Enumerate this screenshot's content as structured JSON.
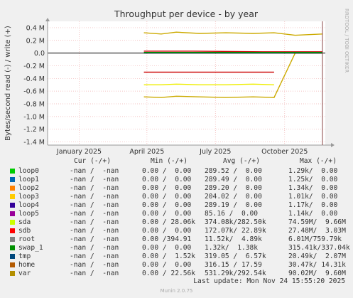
{
  "chart_data": {
    "type": "line",
    "title": "Throughput per device - by year",
    "ylabel": "Bytes/second read (-) / write (+)",
    "side_label": "RRDTOOL / TOBI OETIKER",
    "ylim": [
      -1.45,
      0.5
    ],
    "y_ticks": [
      {
        "value": 0.4,
        "label": "0.4 M"
      },
      {
        "value": 0.2,
        "label": "0.2 M"
      },
      {
        "value": 0.0,
        "label": "0.0"
      },
      {
        "value": -0.2,
        "label": "-0.2 M"
      },
      {
        "value": -0.4,
        "label": "-0.4 M"
      },
      {
        "value": -0.6,
        "label": "-0.6 M"
      },
      {
        "value": -0.8,
        "label": "-0.8 M"
      },
      {
        "value": -1.0,
        "label": "-1.0 M"
      },
      {
        "value": -1.2,
        "label": "-1.2 M"
      },
      {
        "value": -1.4,
        "label": "-1.4 M"
      }
    ],
    "x_range": [
      "2024-11-20",
      "2025-11-24"
    ],
    "x_ticks": [
      {
        "date": "2025-01-01",
        "label": "January 2025"
      },
      {
        "date": "2025-04-01",
        "label": "April 2025"
      },
      {
        "date": "2025-07-01",
        "label": "July 2025"
      },
      {
        "date": "2025-10-01",
        "label": "October 2025"
      }
    ],
    "grid": true,
    "series": [
      {
        "name": "var",
        "color": "#ccaa00",
        "x": [
          "2025-03-28",
          "2025-04-20",
          "2025-05-10",
          "2025-06-10",
          "2025-07-15",
          "2025-08-20",
          "2025-09-17",
          "2025-10-15",
          "2025-11-20"
        ],
        "y": [
          -0.69,
          -0.7,
          -0.68,
          -0.69,
          -0.7,
          -0.69,
          -0.7,
          0.0,
          0.0
        ]
      },
      {
        "name": "var",
        "color": "#ccaa00",
        "x": [
          "2025-03-28",
          "2025-04-20",
          "2025-05-10",
          "2025-06-10",
          "2025-07-15",
          "2025-08-20",
          "2025-09-17",
          "2025-10-15",
          "2025-11-20"
        ],
        "y": [
          0.32,
          0.3,
          0.33,
          0.31,
          0.32,
          0.31,
          0.32,
          0.28,
          0.3
        ]
      },
      {
        "name": "sda",
        "color": "#eeee00",
        "x": [
          "2025-03-28",
          "2025-04-20",
          "2025-05-10",
          "2025-06-10",
          "2025-07-15",
          "2025-08-20",
          "2025-09-17"
        ],
        "y": [
          -0.5,
          -0.5,
          -0.49,
          -0.5,
          -0.5,
          -0.49,
          -0.5
        ]
      },
      {
        "name": "sdb",
        "color": "#cc0000",
        "x": [
          "2025-03-28",
          "2025-04-20",
          "2025-05-10",
          "2025-06-10",
          "2025-07-15",
          "2025-08-20",
          "2025-09-17"
        ],
        "y": [
          -0.3,
          -0.3,
          -0.3,
          -0.3,
          -0.3,
          -0.3,
          -0.3
        ]
      },
      {
        "name": "sdb",
        "color": "#cc0000",
        "x": [
          "2025-03-28",
          "2025-06-01",
          "2025-09-01",
          "2025-11-20"
        ],
        "y": [
          0.03,
          0.03,
          0.02,
          0.02
        ]
      },
      {
        "name": "root",
        "color": "#00cc00",
        "x": [
          "2025-03-28",
          "2025-11-20"
        ],
        "y": [
          0.01,
          0.01
        ]
      },
      {
        "name": "tmp",
        "color": "#006666",
        "x": [
          "2025-03-28",
          "2025-11-20"
        ],
        "y": [
          0.0,
          0.0
        ]
      }
    ]
  },
  "legend": {
    "headers": {
      "cur": "Cur (-/+)",
      "min": "Min (-/+)",
      "avg": "Avg (-/+)",
      "max": "Max (-/+)"
    },
    "rows": [
      {
        "name": "loop0",
        "color": "#00cc00",
        "cur": "-nan /  -nan",
        "min": "0.00 /  0.00",
        "avg": "289.52 /  0.00",
        "max": "1.29k/  0.00"
      },
      {
        "name": "loop1",
        "color": "#0066b3",
        "cur": "-nan /  -nan",
        "min": "0.00 /  0.00",
        "avg": "289.49 /  0.00",
        "max": "1.25k/  0.00"
      },
      {
        "name": "loop2",
        "color": "#ff8000",
        "cur": "-nan /  -nan",
        "min": "0.00 /  0.00",
        "avg": "289.20 /  0.00",
        "max": "1.34k/  0.00"
      },
      {
        "name": "loop3",
        "color": "#ffcc00",
        "cur": "-nan /  -nan",
        "min": "0.00 /  0.00",
        "avg": "204.02 /  0.00",
        "max": "1.01k/  0.00"
      },
      {
        "name": "loop4",
        "color": "#330099",
        "cur": "-nan /  -nan",
        "min": "0.00 /  0.00",
        "avg": "289.19 /  0.00",
        "max": "1.17k/  0.00"
      },
      {
        "name": "loop5",
        "color": "#990099",
        "cur": "-nan /  -nan",
        "min": "0.00 /  0.00",
        "avg": "85.16 /  0.00",
        "max": "1.14k/  0.00"
      },
      {
        "name": "sda",
        "color": "#ccff00",
        "cur": "-nan /  -nan",
        "min": "0.00 / 28.06k",
        "avg": "374.08k/282.50k",
        "max": "74.59M/  9.66M"
      },
      {
        "name": "sdb",
        "color": "#ff0000",
        "cur": "-nan /  -nan",
        "min": "0.00 /  0.00",
        "avg": "172.07k/ 22.89k",
        "max": "27.48M/  3.03M"
      },
      {
        "name": "root",
        "color": "#808080",
        "cur": "-nan /  -nan",
        "min": "0.00 /394.91",
        "avg": "11.52k/  4.89k",
        "max": "6.01M/759.79k"
      },
      {
        "name": "swap_1",
        "color": "#008f00",
        "cur": "-nan /  -nan",
        "min": "0.00 /  0.00",
        "avg": "1.32k/  1.38k",
        "max": "315.41k/337.04k"
      },
      {
        "name": "tmp",
        "color": "#00487d",
        "cur": "-nan /  -nan",
        "min": "0.00 /  1.52k",
        "avg": "319.05 /  6.57k",
        "max": "20.49k/  2.07M"
      },
      {
        "name": "home",
        "color": "#b35a00",
        "cur": "-nan /  -nan",
        "min": "0.00 /  0.00",
        "avg": "316.15 / 17.59",
        "max": "30.47k/ 14.31k"
      },
      {
        "name": "var",
        "color": "#b38f00",
        "cur": "-nan /  -nan",
        "min": "0.00 / 22.56k",
        "avg": "531.29k/292.54k",
        "max": "90.02M/  9.60M"
      }
    ]
  },
  "footer": {
    "last_update": "Last update: Mon Nov 24 15:55:20 2025",
    "munin_version": "Munin 2.0.75"
  }
}
